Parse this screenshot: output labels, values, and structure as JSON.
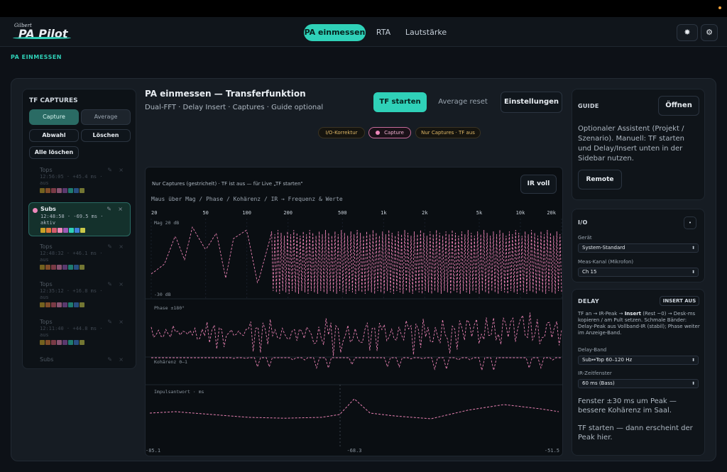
{
  "app": {
    "logo_small": "Gilbert",
    "logo_big": "PA Pilot"
  },
  "nav": {
    "tabs": [
      {
        "label": "PA einmessen",
        "active": true
      },
      {
        "label": "RTA",
        "active": false
      },
      {
        "label": "Lautstärke",
        "active": false
      }
    ],
    "theme_icon": "sun-icon",
    "settings_icon": "gear-icon"
  },
  "section_title": "PA EINMESSEN",
  "captures": {
    "title": "TF CAPTURES",
    "mode_capture": "Capture",
    "mode_average": "Average",
    "abwahl": "Abwahl",
    "loeschen": "Löschen",
    "alle_loeschen": "Alle löschen",
    "items": [
      {
        "name": "Tops",
        "time": "12:56:05",
        "delay": "+45.4 ms",
        "state": "aus",
        "active": false
      },
      {
        "name": "Subs",
        "time": "12:48:58",
        "delay": "-69.5 ms",
        "state": "aktiv",
        "active": true
      },
      {
        "name": "Tops",
        "time": "12:48:32",
        "delay": "+46.1 ms",
        "state": "aus",
        "active": false
      },
      {
        "name": "Tops",
        "time": "12:35:12",
        "delay": "+16.8 ms",
        "state": "aus",
        "active": false
      },
      {
        "name": "Tops",
        "time": "12:11:40",
        "delay": "+44.8 ms",
        "state": "aus",
        "active": false
      },
      {
        "name": "Subs",
        "time": "",
        "delay": "",
        "state": "",
        "active": false
      }
    ],
    "swatch_colors": [
      "#c9a227",
      "#e07b39",
      "#d35b6b",
      "#ee88bb",
      "#9b59b6",
      "#2fd1b8",
      "#3f7fd9",
      "#c9c94a"
    ]
  },
  "header": {
    "title": "PA einmessen — Transferfunktion",
    "subtitle": "Dual-FFT · Delay Insert · Captures · Guide optional",
    "tf_start": "TF starten",
    "average_reset": "Average reset",
    "settings": "Einstellungen",
    "chips": {
      "io": "I/O-Korrektur",
      "capture": "Capture",
      "nur_captures": "Nur Captures · TF aus"
    }
  },
  "plot": {
    "note": "Nur Captures (gestrichelt) · TF ist aus — für Live „TF starten\"",
    "hint": "Maus über Mag / Phase / Kohärenz / IR → Frequenz & Werte",
    "ir_voll": "IR voll",
    "freq_ticks": [
      "20",
      "50",
      "100",
      "200",
      "500",
      "1k",
      "2k",
      "5k",
      "10k",
      "20k"
    ],
    "mag_label": "Mag 20 dB",
    "mag_bottom": "-30 dB",
    "phase_label": "Phase ±180°",
    "coh_label": "Kohärenz 0–1",
    "ir_label": "Impulsantwort · ms",
    "ir_ticks": [
      "-85.1",
      "-68.3",
      "-51.5"
    ],
    "trace_color": "#e57fb0"
  },
  "chart_data": [
    {
      "type": "line",
      "title": "",
      "xlabel": "",
      "ylabel": "Mag 20 dB",
      "xscale": "log",
      "xlim": [
        20,
        20000
      ],
      "ylim": [
        -30,
        20
      ],
      "grid": true,
      "x": [
        20,
        25,
        30,
        35,
        40,
        50,
        60,
        70,
        80,
        100,
        120,
        150,
        180,
        200,
        250,
        300,
        400,
        500,
        700,
        1000,
        1500,
        2000,
        3000,
        5000,
        7000,
        10000,
        15000,
        20000
      ],
      "series": [
        {
          "values": [
            -15,
            -8,
            12,
            -5,
            18,
            2,
            14,
            -18,
            10,
            16,
            -22,
            12,
            -25,
            8,
            -28,
            15,
            -28,
            18,
            -30,
            16,
            -30,
            15,
            -29,
            18,
            -30,
            17,
            -28,
            14
          ]
        }
      ]
    },
    {
      "type": "line",
      "title": "",
      "xlabel": "",
      "ylabel": "Phase ±180°",
      "xscale": "log",
      "xlim": [
        20,
        20000
      ],
      "ylim": [
        -180,
        180
      ],
      "x": [
        20,
        30,
        40,
        50,
        70,
        100,
        150,
        200,
        300,
        400,
        500,
        700,
        1000,
        1500,
        2000,
        3000,
        5000,
        7000,
        10000,
        15000,
        20000
      ],
      "series": [
        {
          "values": [
            60,
            -20,
            90,
            -120,
            40,
            -150,
            80,
            -60,
            150,
            -170,
            120,
            -140,
            100,
            -160,
            130,
            -150,
            110,
            -170,
            140,
            -130,
            90
          ]
        }
      ]
    },
    {
      "type": "line",
      "title": "",
      "xlabel": "",
      "ylabel": "Kohärenz 0–1",
      "xscale": "log",
      "xlim": [
        20,
        20000
      ],
      "ylim": [
        0,
        1
      ],
      "x": [
        20,
        50,
        80,
        100,
        150,
        200,
        300,
        400,
        500,
        700,
        1000,
        1500,
        2000,
        3000,
        5000,
        7000,
        10000,
        15000,
        20000
      ],
      "series": [
        {
          "values": [
            1.0,
            1.0,
            0.97,
            0.6,
            1.0,
            0.9,
            0.55,
            1.0,
            0.7,
            1.0,
            0.6,
            0.95,
            0.5,
            0.9,
            0.45,
            1.0,
            0.55,
            0.9,
            0.7
          ]
        }
      ]
    },
    {
      "type": "line",
      "title": "",
      "xlabel": "",
      "ylabel": "Impulsantwort · ms",
      "xlim": [
        -85.1,
        -51.5
      ],
      "x": [
        -85.1,
        -83,
        -80,
        -77,
        -74,
        -71,
        -69.5,
        -68.3,
        -67,
        -65,
        -62,
        -59,
        -56,
        -53,
        -51.5
      ],
      "series": [
        {
          "values": [
            0.1,
            0.15,
            0.05,
            -0.05,
            -0.08,
            -0.05,
            0.05,
            0.6,
            0.1,
            0.0,
            -0.1,
            0.2,
            0.4,
            0.25,
            0.15
          ]
        }
      ]
    }
  ],
  "guide": {
    "title": "GUIDE",
    "open": "Öffnen",
    "text": "Optionaler Assistent (Projekt / Szenario). Manuell: TF starten und Delay/Insert unten in der Sidebar nutzen.",
    "remote": "Remote"
  },
  "io": {
    "title": "I/O",
    "small_btn": "•",
    "device_label": "Gerät",
    "device_value": "System-Standard",
    "channel_label": "Meas-Kanal (Mikrofon)",
    "channel_value": "Ch 15"
  },
  "delay": {
    "title": "DELAY",
    "insert_btn": "INSERT AUS",
    "text_pre": "TF an → IR-Peak → ",
    "text_bold": "Insert",
    "text_post": " (Rest ~0) → Desk-ms kopieren / am Pult setzen. Schmale Bänder: Delay-Peak aus Vollband-IR (stabil); Phase weiter im Anzeige-Band.",
    "band_label": "Delay-Band",
    "band_value": "Sub↔Top 60–120 Hz",
    "window_label": "IR-Zeitfenster",
    "window_value": "60 ms (Bass)",
    "hint1": "Fenster ±30 ms um Peak — bessere Kohärenz im Saal.",
    "hint2": "TF starten — dann erscheint der Peak hier."
  }
}
